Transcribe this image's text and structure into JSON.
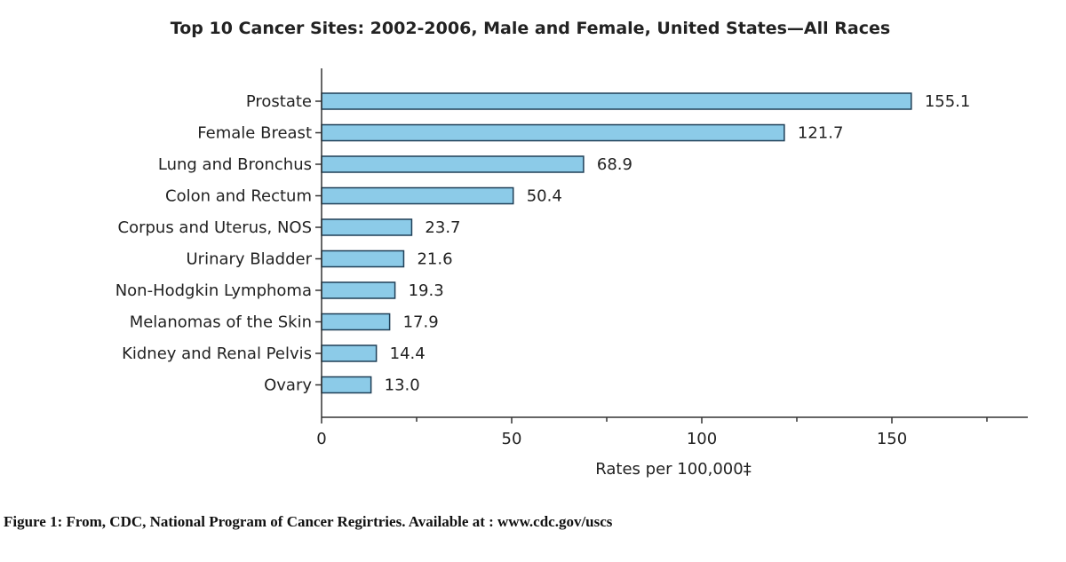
{
  "chart_data": {
    "type": "bar",
    "orientation": "horizontal",
    "title": "Top 10 Cancer Sites: 2002-2006, Male and Female, United States—All Races",
    "categories": [
      "Prostate",
      "Female Breast",
      "Lung and Bronchus",
      "Colon and Rectum",
      "Corpus and Uterus, NOS",
      "Urinary Bladder",
      "Non-Hodgkin Lymphoma",
      "Melanomas of the Skin",
      "Kidney and Renal Pelvis",
      "Ovary"
    ],
    "values": [
      155.1,
      121.7,
      68.9,
      50.4,
      23.7,
      21.6,
      19.3,
      17.9,
      14.4,
      13.0
    ],
    "value_labels": [
      "155.1",
      "121.7",
      "68.9",
      "50.4",
      "23.7",
      "21.6",
      "19.3",
      "17.9",
      "14.4",
      "13.0"
    ],
    "xlabel": "Rates per 100,000‡",
    "ylabel": "",
    "xlim": [
      0,
      185
    ],
    "xticks": [
      0,
      50,
      100,
      150
    ],
    "xtick_labels": [
      "0",
      "50",
      "100",
      "150"
    ],
    "grid": false,
    "bar_color": "#8ccbe8",
    "bar_edge_color": "#1f3f57"
  },
  "caption": "Figure 1: From, CDC, National Program of Cancer Regirtries. Available at : www.cdc.gov/uscs"
}
